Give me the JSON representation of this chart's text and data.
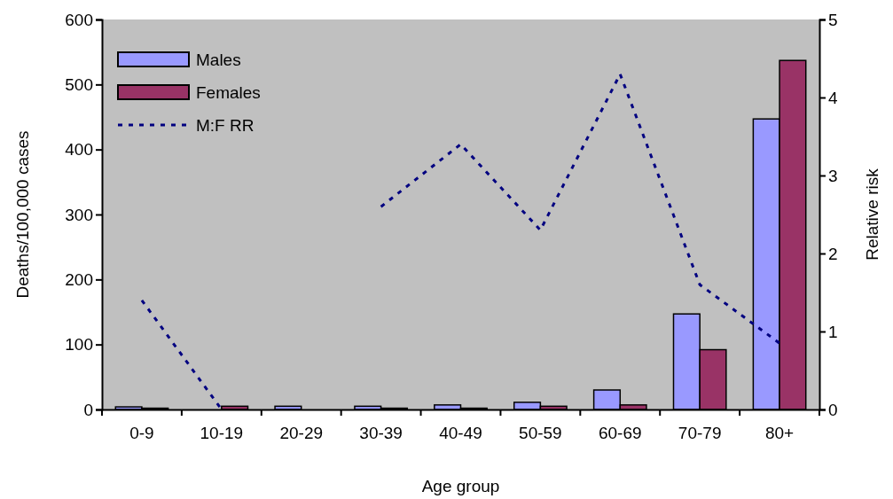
{
  "chart_data": {
    "type": "bar",
    "xlabel": "Age group",
    "ylabel": "Deaths/100,000 cases",
    "y2label": "Relative risk",
    "categories": [
      "0-9",
      "10-19",
      "20-29",
      "30-39",
      "40-49",
      "50-59",
      "60-69",
      "70-79",
      "80+"
    ],
    "series": [
      {
        "name": "Males",
        "color": "#9999ff",
        "values": [
          4,
          0,
          5,
          5,
          7,
          11,
          30,
          147,
          447
        ]
      },
      {
        "name": "Females",
        "color": "#993366",
        "values": [
          2,
          5,
          0,
          2,
          2,
          5,
          7,
          92,
          537
        ]
      },
      {
        "name": "M:F RR",
        "type": "line",
        "axis": "y2",
        "color": "#000080",
        "line_style": "dashed",
        "marker": "none",
        "values": [
          1.4,
          0,
          null,
          2.6,
          3.4,
          2.3,
          4.3,
          1.6,
          0.85
        ]
      }
    ],
    "ylim": [
      0,
      600
    ],
    "yticks": [
      0,
      100,
      200,
      300,
      400,
      500,
      600
    ],
    "y2lim": [
      0,
      5
    ],
    "y2ticks": [
      0,
      1,
      2,
      3,
      4,
      5
    ],
    "grid": false,
    "legend": "top left"
  }
}
